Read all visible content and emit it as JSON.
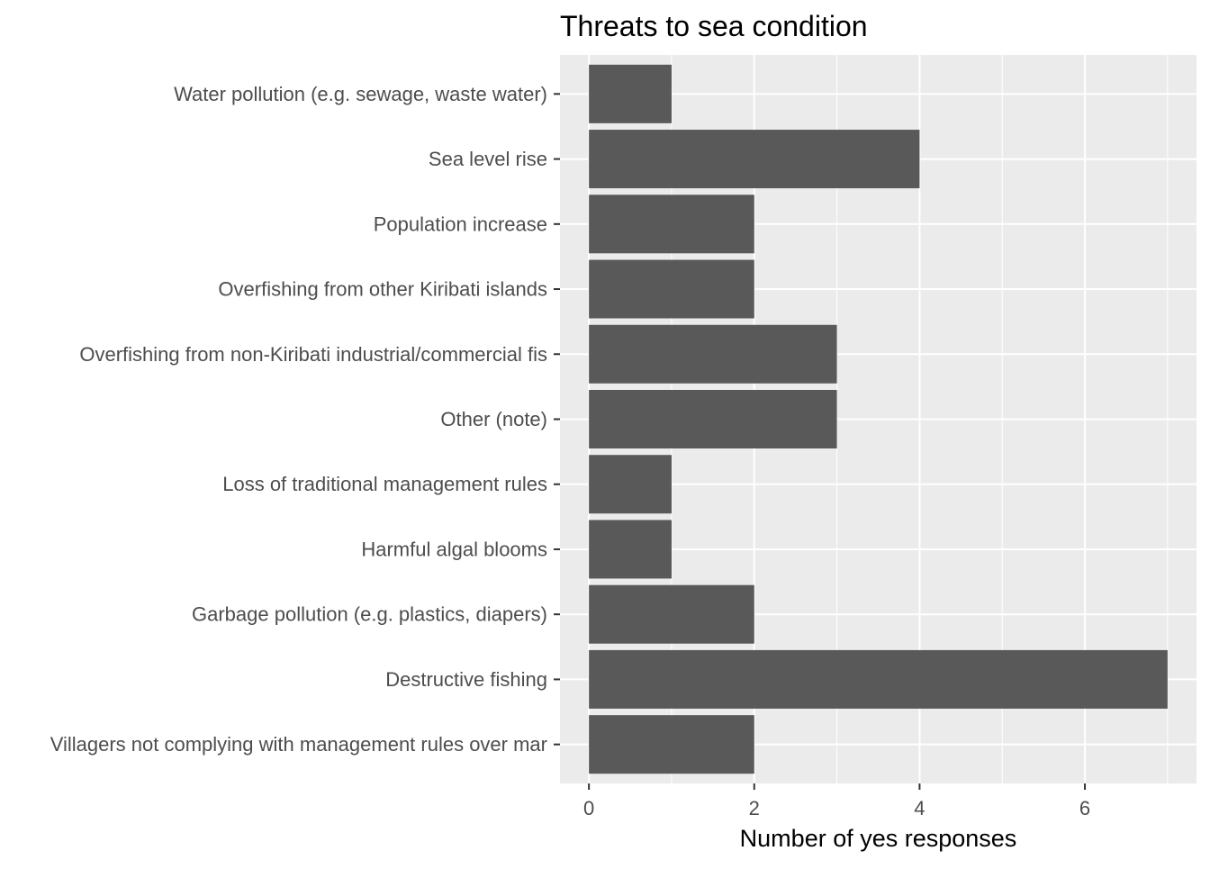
{
  "chart_data": {
    "type": "bar",
    "orientation": "horizontal",
    "title": "Threats to sea condition",
    "xlabel": "Number of yes responses",
    "ylabel": "",
    "categories": [
      "Water pollution (e.g. sewage, waste water)",
      "Sea level rise",
      "Population increase",
      "Overfishing from other Kiribati islands",
      "Overfishing from non-Kiribati industrial/commercial fis",
      "Other (note)",
      "Loss of traditional management rules",
      "Harmful algal blooms",
      "Garbage pollution (e.g. plastics, diapers)",
      "Destructive fishing",
      "Villagers not complying with management rules over mar"
    ],
    "values": [
      1,
      4,
      2,
      2,
      3,
      3,
      1,
      1,
      2,
      7,
      2
    ],
    "xlim": [
      -0.35,
      7.35
    ],
    "xticks": [
      0,
      2,
      4,
      6
    ],
    "xtick_labels": [
      "0",
      "2",
      "4",
      "6"
    ],
    "grid": true,
    "legend": "none",
    "colors": {
      "bar": "#595959",
      "panel": "#ebebeb",
      "grid": "#ffffff",
      "axis_text": "#4d4d4d",
      "tick": "#333333"
    }
  }
}
